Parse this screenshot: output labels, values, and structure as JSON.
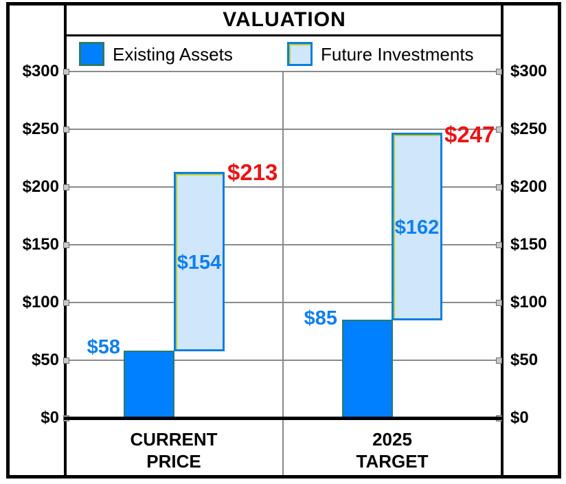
{
  "title": "VALUATION",
  "legend": {
    "items": [
      {
        "label": "Existing Assets",
        "color": "#0080ff"
      },
      {
        "label": "Future Investments",
        "color": "#cfe6fb"
      }
    ]
  },
  "y_axis": {
    "ticks": [
      "$300",
      "$250",
      "$200",
      "$150",
      "$100",
      "$50",
      "$0"
    ]
  },
  "groups": [
    {
      "category_line1": "CURRENT",
      "category_line2": "PRICE",
      "existing_label": "$58",
      "future_label": "$154",
      "total_label": "$213"
    },
    {
      "category_line1": "2025",
      "category_line2": "TARGET",
      "existing_label": "$85",
      "future_label": "$162",
      "total_label": "$247"
    }
  ],
  "colors": {
    "existing_fill": "#0080ff",
    "future_fill": "#cfe6fb",
    "bar_border_teal": "#2e7a68",
    "future_border_blue": "#0b7edd",
    "value_label_blue": "#0f7ff0",
    "total_label_red": "#ee1111",
    "gridline_gray": "#8a8a8a"
  },
  "chart_data": {
    "type": "bar",
    "subtype": "waterfall / floating stacked bars",
    "title": "VALUATION",
    "categories": [
      "CURRENT PRICE",
      "2025 TARGET"
    ],
    "series": [
      {
        "name": "Existing Assets",
        "values": [
          58,
          85
        ],
        "color": "#0080ff",
        "segment_base": [
          0,
          0
        ]
      },
      {
        "name": "Future Investments",
        "values": [
          154,
          162
        ],
        "color": "#cfe6fb",
        "segment_base": [
          58,
          85
        ]
      }
    ],
    "totals": [
      213,
      247
    ],
    "value_labels": {
      "existing": [
        "$58",
        "$85"
      ],
      "future": [
        "$154",
        "$162"
      ],
      "totals": [
        "$213",
        "$247"
      ]
    },
    "xlabel": "",
    "ylabel": "",
    "ylim": [
      0,
      300
    ],
    "ytick_step": 50,
    "ytick_format": "$",
    "grid": true,
    "y_axis_mirrored_right": true,
    "legend_position": "top"
  }
}
